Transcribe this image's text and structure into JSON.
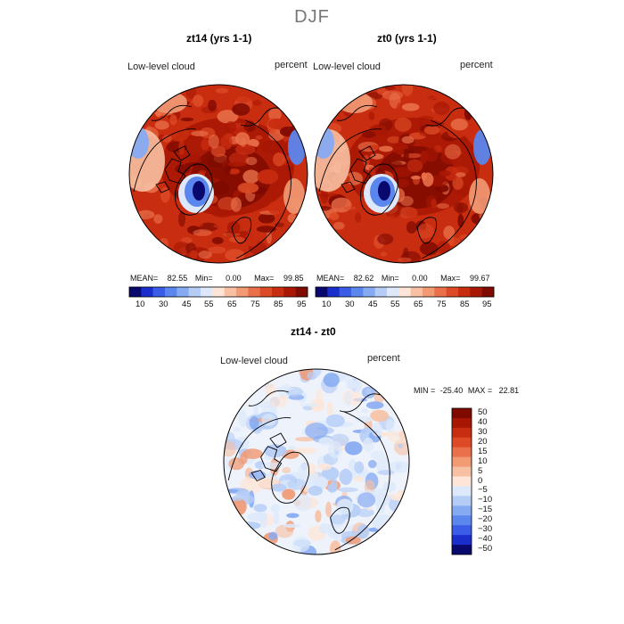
{
  "season": "DJF",
  "chart_data": [
    {
      "type": "heatmap",
      "projection": "north-polar-stereographic",
      "title": "zt14 (yrs 1-1)",
      "variable_label": "Low-level cloud",
      "units": "percent",
      "stats": {
        "mean_label": "MEAN=",
        "mean": "82.55",
        "min_label": "Min=",
        "min": "0.00",
        "max_label": "Max=",
        "max": "99.85"
      },
      "colorbar": {
        "levels": [
          10,
          20,
          30,
          40,
          45,
          50,
          55,
          60,
          65,
          70,
          75,
          80,
          85,
          90,
          95
        ],
        "tick_labels": [
          "10",
          "30",
          "45",
          "55",
          "65",
          "75",
          "85",
          "95"
        ],
        "colors": [
          "#08086e",
          "#1a2ecb",
          "#3a5ce6",
          "#5b86ee",
          "#86aaf2",
          "#b5cdf6",
          "#dde9fb",
          "#fde6d8",
          "#f7c0a3",
          "#f19a74",
          "#e9704a",
          "#dc4a26",
          "#c92d10",
          "#a81704",
          "#7e0a00"
        ]
      }
    },
    {
      "type": "heatmap",
      "projection": "north-polar-stereographic",
      "title": "zt0 (yrs 1-1)",
      "variable_label": "Low-level cloud",
      "units": "percent",
      "stats": {
        "mean_label": "MEAN=",
        "mean": "82.62",
        "min_label": "Min=",
        "min": "0.00",
        "max_label": "Max=",
        "max": "99.67"
      },
      "colorbar": {
        "levels": [
          10,
          20,
          30,
          40,
          45,
          50,
          55,
          60,
          65,
          70,
          75,
          80,
          85,
          90,
          95
        ],
        "tick_labels": [
          "10",
          "30",
          "45",
          "55",
          "65",
          "75",
          "85",
          "95"
        ],
        "colors": [
          "#08086e",
          "#1a2ecb",
          "#3a5ce6",
          "#5b86ee",
          "#86aaf2",
          "#b5cdf6",
          "#dde9fb",
          "#fde6d8",
          "#f7c0a3",
          "#f19a74",
          "#e9704a",
          "#dc4a26",
          "#c92d10",
          "#a81704",
          "#7e0a00"
        ]
      }
    },
    {
      "type": "heatmap",
      "projection": "north-polar-stereographic",
      "title": "zt14 - zt0",
      "variable_label": "Low-level cloud",
      "units": "percent",
      "stats": {
        "min_label": "MIN =",
        "min": "-25.40",
        "max_label": "MAX =",
        "max": "22.81"
      },
      "colorbar": {
        "tick_labels": [
          "50",
          "40",
          "30",
          "20",
          "15",
          "10",
          "5",
          "0",
          "−5",
          "−10",
          "−15",
          "−20",
          "−30",
          "−40",
          "−50"
        ],
        "colors": [
          "#7e0a00",
          "#a81704",
          "#c92d10",
          "#dc4a26",
          "#e9704a",
          "#f19a74",
          "#f7c0a3",
          "#fde6d8",
          "#dde9fb",
          "#b5cdf6",
          "#86aaf2",
          "#5b86ee",
          "#3a5ce6",
          "#1a2ecb",
          "#08086e"
        ]
      }
    }
  ]
}
